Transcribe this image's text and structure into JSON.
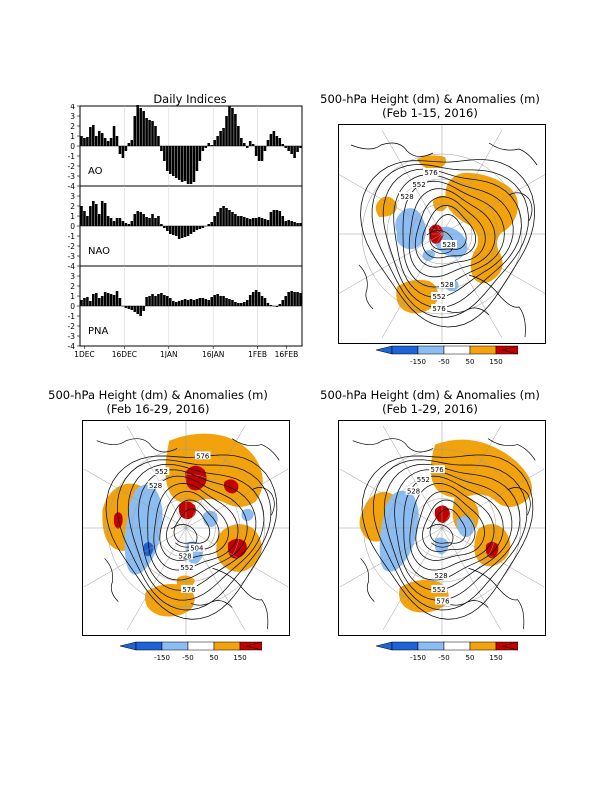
{
  "colors": {
    "strong_neg": "#1d63d6",
    "neg": "#8cbdf2",
    "pos": "#f2a20c",
    "strong_pos": "#c40000",
    "bar": "#000000"
  },
  "indices": {
    "title": "Daily Indices",
    "yticks": [
      "4",
      "3",
      "2",
      "1",
      "0",
      "-1",
      "-2",
      "-3",
      "-4"
    ],
    "xticks": [
      "1DEC",
      "16DEC",
      "1JAN",
      "16JAN",
      "1FEB",
      "16FEB"
    ]
  },
  "maps": [
    {
      "title_line1": "500-hPa Height (dm) & Anomalies (m)",
      "title_line2": "(Feb 1-15, 2016)"
    },
    {
      "title_line1": "500-hPa Height (dm) & Anomalies (m)",
      "title_line2": "(Feb 16-29, 2016)"
    },
    {
      "title_line1": "500-hPa Height (dm) & Anomalies (m)",
      "title_line2": "(Feb 1-29, 2016)"
    }
  ],
  "legend": {
    "ticks": [
      "-150",
      "-50",
      "50",
      "150"
    ]
  },
  "contour_labels": {
    "map1": [
      "576",
      "552",
      "528",
      "528",
      "552",
      "576",
      "528"
    ],
    "map2": [
      "576",
      "552",
      "528",
      "504",
      "528",
      "552",
      "576"
    ],
    "map3": [
      "576",
      "552",
      "528",
      "528",
      "552",
      "576"
    ]
  },
  "chart_data": [
    {
      "type": "bar",
      "title": "Daily Indices",
      "series": [
        {
          "name": "AO",
          "values": [
            1.0,
            0.8,
            0.9,
            1.9,
            2.1,
            1.0,
            1.5,
            1.3,
            0.8,
            0.5,
            0.8,
            2.0,
            1.0,
            -0.8,
            -1.2,
            -0.5,
            0.3,
            0.6,
            3.0,
            4.1,
            3.8,
            3.5,
            2.8,
            2.6,
            2.5,
            2.0,
            1.0,
            -0.5,
            -1.5,
            -2.5,
            -2.8,
            -3.0,
            -3.2,
            -3.4,
            -3.6,
            -3.5,
            -3.8,
            -3.8,
            -3.6,
            -2.5,
            -1.5,
            -0.5,
            -0.2,
            0.3,
            0.1,
            0.6,
            1.0,
            1.5,
            1.8,
            3.0,
            4.0,
            3.8,
            3.2,
            2.0,
            0.8,
            0.3,
            -0.2,
            0.5,
            0.2,
            -1.0,
            -1.5,
            -1.5,
            -0.5,
            0.6,
            1.2,
            1.5,
            1.0,
            0.8,
            0.2,
            -0.2,
            -0.5,
            -0.8,
            -1.2,
            -0.6,
            -0.2
          ]
        },
        {
          "name": "NAO",
          "values": [
            2.0,
            1.5,
            1.0,
            2.0,
            2.5,
            2.2,
            1.2,
            2.5,
            2.3,
            1.0,
            0.8,
            0.5,
            0.8,
            0.8,
            0.5,
            0.3,
            0.2,
            0.5,
            1.2,
            1.5,
            1.4,
            1.2,
            0.9,
            0.8,
            1.2,
            0.8,
            1.0,
            0.2,
            -0.2,
            -0.5,
            -0.8,
            -0.9,
            -1.0,
            -1.3,
            -1.2,
            -1.1,
            -1.0,
            -0.8,
            -0.6,
            -0.4,
            -0.3,
            -0.2,
            0.0,
            0.2,
            0.4,
            1.0,
            1.4,
            1.8,
            2.0,
            1.8,
            1.6,
            1.4,
            1.2,
            1.0,
            1.0,
            0.9,
            0.8,
            0.7,
            0.8,
            0.8,
            0.9,
            0.8,
            0.7,
            0.6,
            1.4,
            1.6,
            1.6,
            1.5,
            1.0,
            0.5,
            0.6,
            0.5,
            0.4,
            0.3,
            0.3
          ]
        },
        {
          "name": "PNA",
          "values": [
            0.6,
            0.8,
            0.9,
            0.5,
            1.2,
            1.3,
            0.8,
            1.0,
            1.4,
            1.3,
            1.2,
            1.1,
            1.5,
            0.8,
            0.0,
            -0.2,
            -0.3,
            -0.4,
            -0.6,
            -0.8,
            -1.0,
            -0.5,
            0.9,
            1.0,
            1.2,
            1.0,
            1.2,
            1.3,
            1.1,
            1.0,
            0.8,
            0.5,
            0.4,
            0.5,
            0.6,
            0.7,
            0.6,
            0.7,
            0.6,
            0.7,
            0.8,
            0.8,
            0.7,
            0.6,
            0.9,
            1.1,
            1.2,
            1.0,
            1.0,
            0.8,
            0.7,
            0.6,
            0.4,
            0.3,
            0.3,
            0.4,
            0.6,
            1.1,
            1.4,
            1.6,
            1.4,
            1.0,
            0.8,
            0.3,
            0.1,
            0.0,
            -0.1,
            0.2,
            0.6,
            1.0,
            1.4,
            1.5,
            1.4,
            1.4,
            1.3
          ]
        }
      ],
      "ylim": [
        -4,
        4
      ]
    },
    {
      "type": "heatmap",
      "title": "500-hPa Height (dm) & Anomalies (m)",
      "subtitle": "(Feb 1-15, 2016)",
      "legend_levels": [
        -150,
        -50,
        50,
        150
      ]
    },
    {
      "type": "heatmap",
      "title": "500-hPa Height (dm) & Anomalies (m)",
      "subtitle": "(Feb 16-29, 2016)",
      "legend_levels": [
        -150,
        -50,
        50,
        150
      ]
    },
    {
      "type": "heatmap",
      "title": "500-hPa Height (dm) & Anomalies (m)",
      "subtitle": "(Feb 1-29, 2016)",
      "legend_levels": [
        -150,
        -50,
        50,
        150
      ]
    }
  ]
}
